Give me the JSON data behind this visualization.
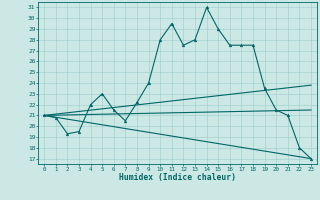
{
  "xlabel": "Humidex (Indice chaleur)",
  "bg_color": "#cce8e4",
  "grid_color": "#99cccc",
  "line_color": "#006666",
  "xlim": [
    -0.5,
    23.5
  ],
  "ylim": [
    16.5,
    31.5
  ],
  "yticks": [
    17,
    18,
    19,
    20,
    21,
    22,
    23,
    24,
    25,
    26,
    27,
    28,
    29,
    30,
    31
  ],
  "xticks": [
    0,
    1,
    2,
    3,
    4,
    5,
    6,
    7,
    8,
    9,
    10,
    11,
    12,
    13,
    14,
    15,
    16,
    17,
    18,
    19,
    20,
    21,
    22,
    23
  ],
  "main_curve_x": [
    0,
    1,
    2,
    3,
    4,
    5,
    6,
    7,
    8,
    9,
    10,
    11,
    12,
    13,
    14,
    15,
    16,
    17,
    18,
    19,
    20,
    21,
    22,
    23
  ],
  "main_curve_y": [
    21.0,
    20.8,
    19.3,
    19.5,
    22.0,
    23.0,
    21.5,
    20.5,
    22.2,
    24.0,
    28.0,
    29.5,
    27.5,
    28.0,
    31.0,
    29.0,
    27.5,
    27.5,
    27.5,
    23.5,
    21.5,
    21.0,
    18.0,
    17.0
  ],
  "line1_x": [
    0,
    23
  ],
  "line1_y": [
    21.0,
    17.0
  ],
  "line2_x": [
    0,
    23
  ],
  "line2_y": [
    21.0,
    21.5
  ],
  "line3_x": [
    0,
    23
  ],
  "line3_y": [
    21.0,
    23.8
  ],
  "lw": 0.8,
  "marker_size": 2.0
}
